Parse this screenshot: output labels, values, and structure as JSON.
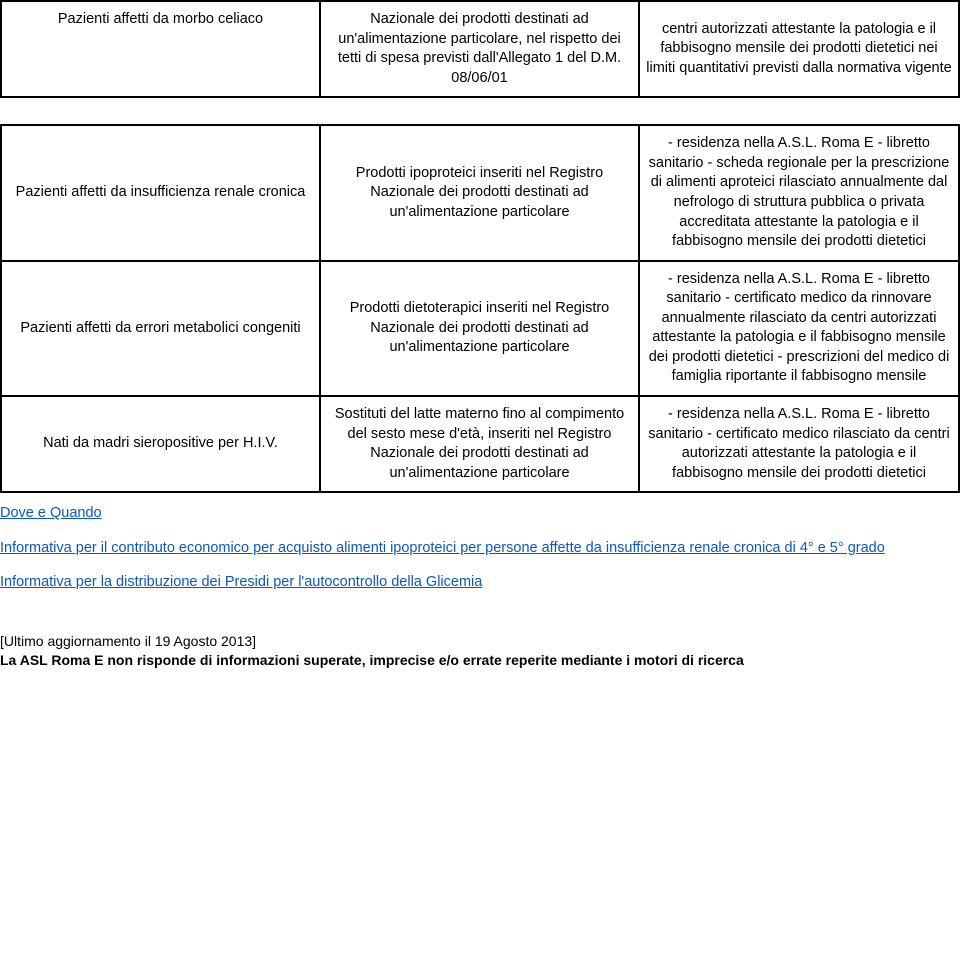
{
  "table1": {
    "row1": {
      "c1": "Pazienti affetti da morbo celiaco",
      "c2": "Nazionale dei prodotti destinati ad un'alimentazione particolare, nel rispetto dei tetti di spesa previsti dall'Allegato 1 del D.M. 08/06/01",
      "c3": "centri autorizzati attestante la patologia e il fabbisogno mensile dei prodotti dietetici nei limiti quantitativi previsti dalla normativa vigente"
    }
  },
  "table2": {
    "row1": {
      "c1": "Pazienti affetti da insufficienza renale cronica",
      "c2": "Prodotti ipoproteici inseriti nel Registro Nazionale dei prodotti destinati ad un'alimentazione particolare",
      "c3": "- residenza nella A.S.L. Roma E\n- libretto sanitario\n- scheda regionale per la prescrizione di alimenti aproteici rilasciato annualmente dal nefrologo di struttura pubblica o privata accreditata attestante la patologia e il fabbisogno mensile dei prodotti dietetici"
    },
    "row2": {
      "c1": "Pazienti affetti da errori metabolici congeniti",
      "c2": "Prodotti dietoterapici inseriti nel Registro Nazionale dei prodotti destinati ad un'alimentazione particolare",
      "c3": "- residenza nella A.S.L. Roma E\n- libretto sanitario\n- certificato medico da rinnovare annualmente rilasciato da centri autorizzati attestante la patologia e il fabbisogno mensile dei prodotti dietetici\n- prescrizioni del medico di famiglia riportante il fabbisogno mensile"
    },
    "row3": {
      "c1": "Nati da madri sieropositive per H.I.V.",
      "c2": "Sostituti del latte materno fino al compimento del sesto mese d'età, inseriti nel Registro Nazionale dei prodotti destinati ad un'alimentazione particolare",
      "c3": "- residenza nella A.S.L. Roma E\n- libretto sanitario\n- certificato medico rilasciato da centri autorizzati attestante la patologia e il fabbisogno mensile dei prodotti dietetici"
    }
  },
  "links": {
    "dove": "Dove e Quando",
    "info1": "Informativa per il contributo economico per acquisto alimenti ipoproteici per persone affette da insufficienza renale cronica di 4° e 5° grado",
    "info2": "Informativa per la distribuzione dei Presidi per l'autocontrollo della Glicemia"
  },
  "footer": {
    "updated": " [Ultimo aggiornamento il 19 Agosto 2013]",
    "disclaimer": "La ASL Roma E non risponde di informazioni superate, imprecise e/o errate reperite mediante i motori di ricerca"
  }
}
